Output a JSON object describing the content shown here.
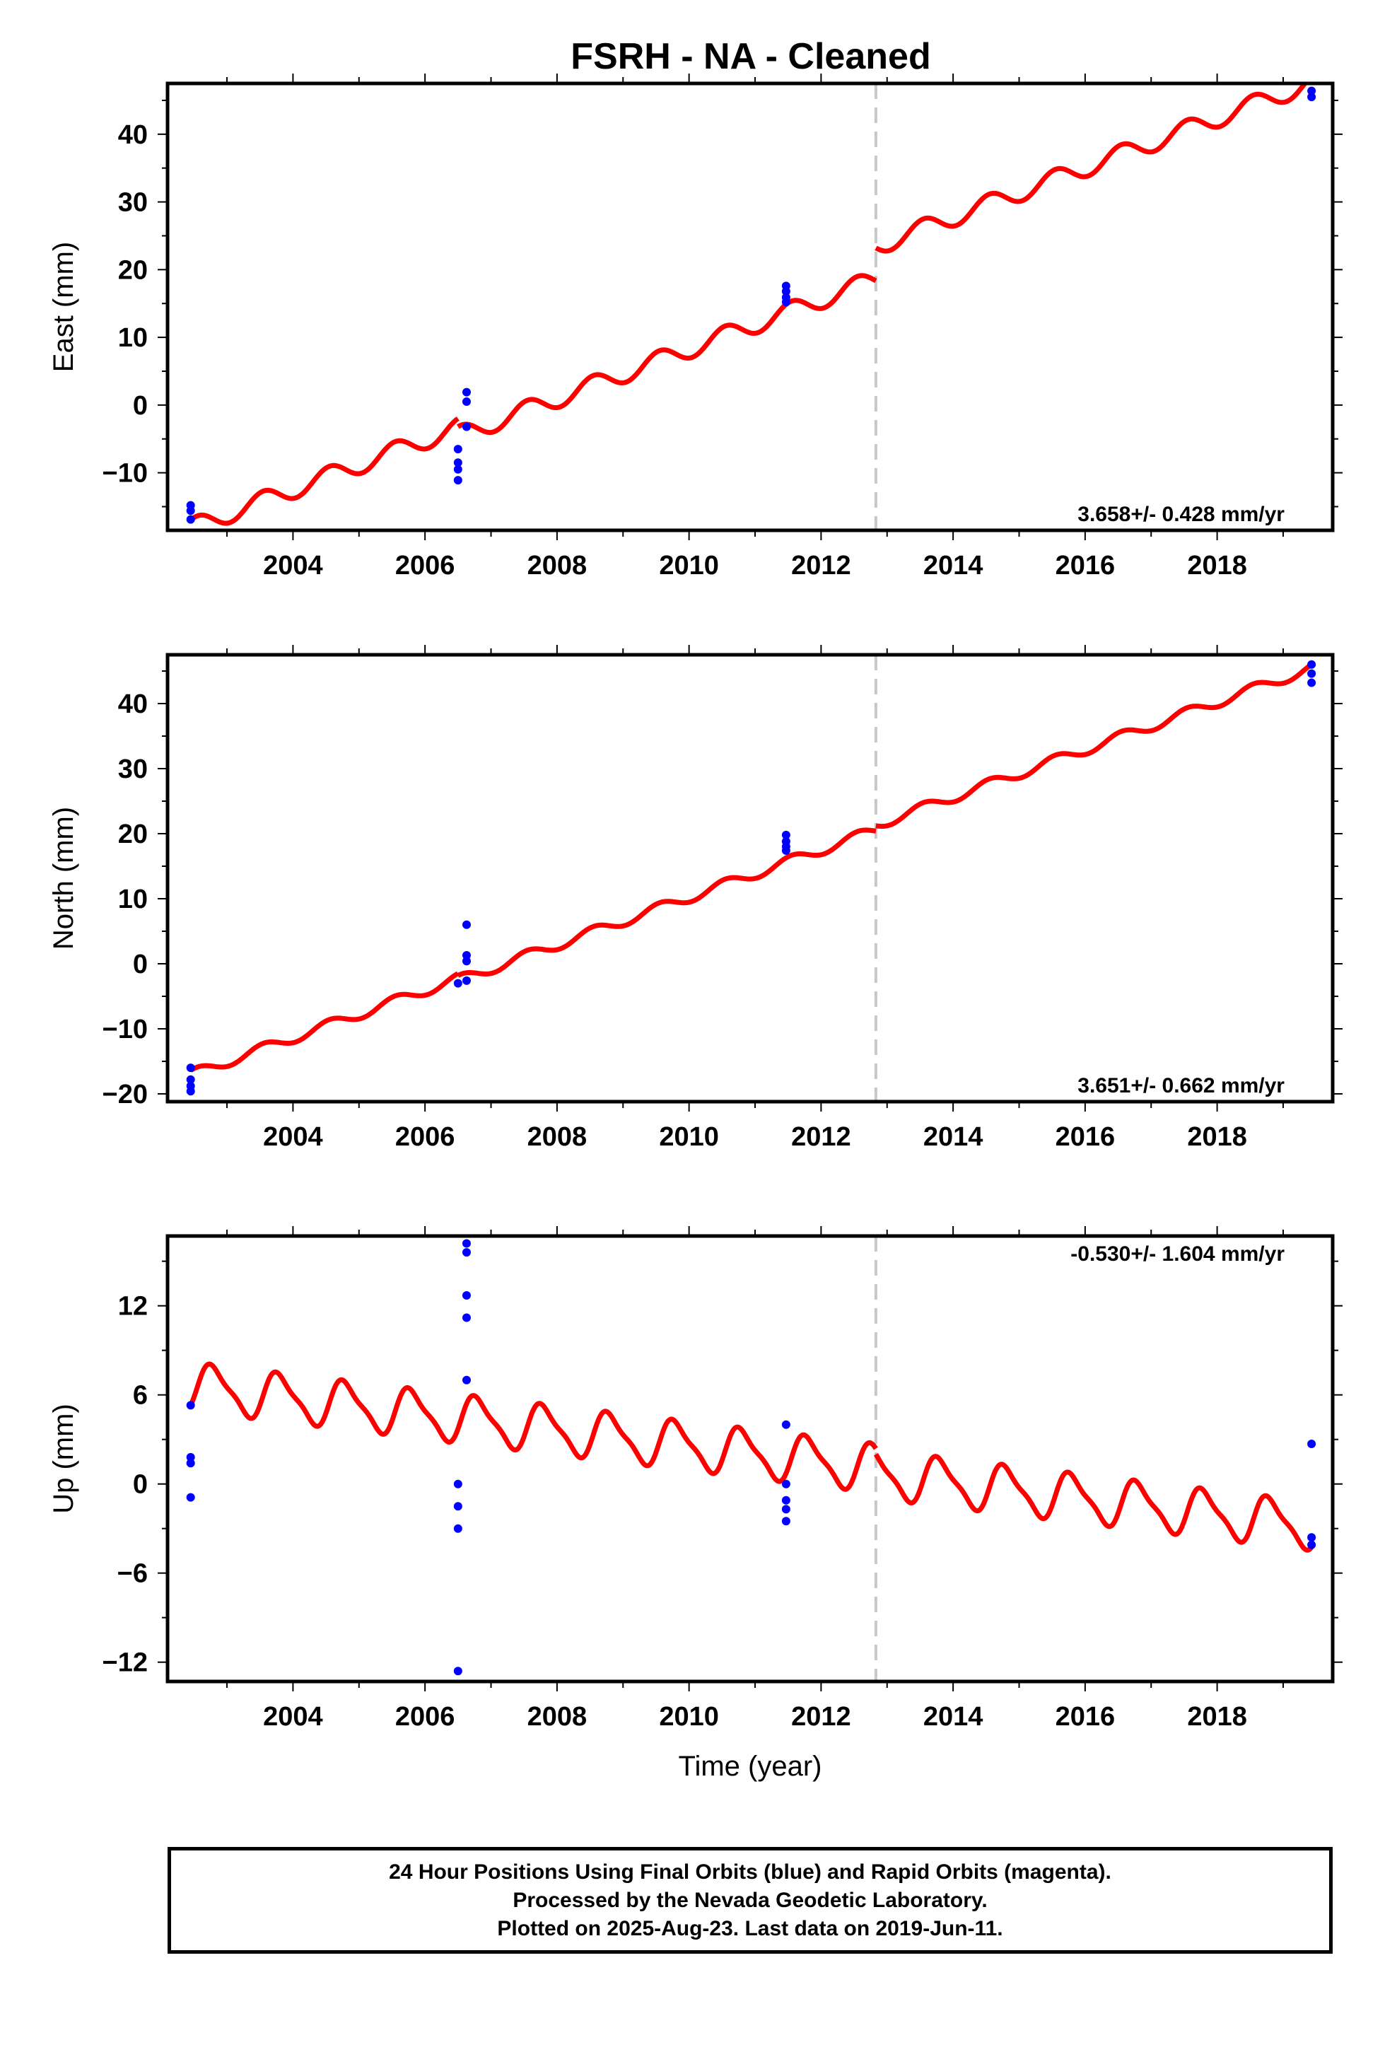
{
  "title": "FSRH  - NA - Cleaned",
  "colors": {
    "model": "#ff0000",
    "final_orbits": "#0000ff",
    "offset_line": "#c8c8c8",
    "frame": "#000000"
  },
  "footer": {
    "line1": "24 Hour Positions Using Final Orbits (blue) and Rapid Orbits (magenta).",
    "line2": "Processed by the Nevada Geodetic Laboratory.",
    "line3": "Plotted on 2025-Aug-23. Last data on 2019-Jun-11."
  },
  "chart_data": [
    {
      "type": "scatter",
      "component": "east",
      "ylabel": "East (mm)",
      "xlabel": "",
      "xlim": [
        2002.1,
        2019.75
      ],
      "ylim": [
        -18.5,
        47.5
      ],
      "x_ticks": [
        2004,
        2006,
        2008,
        2010,
        2012,
        2014,
        2016,
        2018
      ],
      "y_ticks": [
        -10,
        0,
        10,
        20,
        30,
        40
      ],
      "y_tick_labels": [
        "−10",
        "0",
        "10",
        "20",
        "30",
        "40"
      ],
      "rate_label": "3.658+/- 0.428 mm/yr",
      "rate_label_position": "bottom-right",
      "offset_epoch": 2012.83,
      "points": [
        {
          "x": 2002.45,
          "y": -14.8
        },
        {
          "x": 2002.45,
          "y": -15.6
        },
        {
          "x": 2002.45,
          "y": -16.9
        },
        {
          "x": 2006.5,
          "y": -6.5
        },
        {
          "x": 2006.5,
          "y": -8.5
        },
        {
          "x": 2006.5,
          "y": -9.5
        },
        {
          "x": 2006.5,
          "y": -11.1
        },
        {
          "x": 2006.63,
          "y": 1.9
        },
        {
          "x": 2006.63,
          "y": 0.5
        },
        {
          "x": 2006.63,
          "y": -3.2
        },
        {
          "x": 2011.47,
          "y": 17.6
        },
        {
          "x": 2011.47,
          "y": 16.8
        },
        {
          "x": 2011.47,
          "y": 15.9
        },
        {
          "x": 2011.47,
          "y": 15.2
        },
        {
          "x": 2019.43,
          "y": 45.5
        },
        {
          "x": 2019.43,
          "y": 46.4
        }
      ],
      "model": {
        "segments": [
          {
            "start": 2002.45,
            "end": 2006.5,
            "anchor_x": 2002.45,
            "anchor_y": -17.0
          },
          {
            "start": 2006.5,
            "end": 2012.83,
            "anchor_x": 2006.5,
            "anchor_y": -3.2
          },
          {
            "start": 2012.83,
            "end": 2019.43,
            "anchor_x": 2012.83,
            "anchor_y": 23.2
          }
        ],
        "rate": 3.658,
        "annual_amplitude": 1.4,
        "annual_phase": 0.3
      }
    },
    {
      "type": "scatter",
      "component": "north",
      "ylabel": "North (mm)",
      "xlabel": "",
      "xlim": [
        2002.1,
        2019.75
      ],
      "ylim": [
        -21.2,
        47.5
      ],
      "x_ticks": [
        2004,
        2006,
        2008,
        2010,
        2012,
        2014,
        2016,
        2018
      ],
      "y_ticks": [
        -20,
        -10,
        0,
        10,
        20,
        30,
        40
      ],
      "y_tick_labels": [
        "−20",
        "−10",
        "0",
        "10",
        "20",
        "30",
        "40"
      ],
      "rate_label": "3.651+/- 0.662 mm/yr",
      "rate_label_position": "bottom-right",
      "offset_epoch": 2012.83,
      "points": [
        {
          "x": 2002.45,
          "y": -16.0
        },
        {
          "x": 2002.45,
          "y": -17.8
        },
        {
          "x": 2002.45,
          "y": -18.8
        },
        {
          "x": 2002.45,
          "y": -19.6
        },
        {
          "x": 2006.5,
          "y": -3.0
        },
        {
          "x": 2006.63,
          "y": -2.6
        },
        {
          "x": 2006.63,
          "y": 6.0
        },
        {
          "x": 2006.63,
          "y": 1.3
        },
        {
          "x": 2006.63,
          "y": 0.4
        },
        {
          "x": 2011.47,
          "y": 19.8
        },
        {
          "x": 2011.47,
          "y": 18.8
        },
        {
          "x": 2011.47,
          "y": 18.0
        },
        {
          "x": 2011.47,
          "y": 17.4
        },
        {
          "x": 2019.43,
          "y": 46.0
        },
        {
          "x": 2019.43,
          "y": 44.6
        },
        {
          "x": 2019.43,
          "y": 43.2
        }
      ],
      "model": {
        "segments": [
          {
            "start": 2002.45,
            "end": 2006.5,
            "anchor_x": 2002.45,
            "anchor_y": -16.4
          },
          {
            "start": 2006.5,
            "end": 2012.83,
            "anchor_x": 2006.5,
            "anchor_y": -1.8
          },
          {
            "start": 2012.83,
            "end": 2019.43,
            "anchor_x": 2012.83,
            "anchor_y": 21.2
          }
        ],
        "rate": 3.651,
        "annual_amplitude": 0.8,
        "annual_phase": 0.3
      }
    },
    {
      "type": "scatter",
      "component": "up",
      "ylabel": "Up (mm)",
      "xlabel": "Time (year)",
      "xlim": [
        2002.1,
        2019.75
      ],
      "ylim": [
        -13.3,
        16.7
      ],
      "x_ticks": [
        2004,
        2006,
        2008,
        2010,
        2012,
        2014,
        2016,
        2018
      ],
      "y_ticks": [
        -12,
        -6,
        0,
        6,
        12
      ],
      "y_tick_labels": [
        "−12",
        "−6",
        "0",
        "6",
        "12"
      ],
      "rate_label": "-0.530+/- 1.604 mm/yr",
      "rate_label_position": "top-right",
      "offset_epoch": 2012.83,
      "points": [
        {
          "x": 2002.45,
          "y": 5.3
        },
        {
          "x": 2002.45,
          "y": 1.8
        },
        {
          "x": 2002.45,
          "y": 1.4
        },
        {
          "x": 2002.45,
          "y": -0.9
        },
        {
          "x": 2006.5,
          "y": 0.0
        },
        {
          "x": 2006.5,
          "y": -1.5
        },
        {
          "x": 2006.5,
          "y": -3.0
        },
        {
          "x": 2006.5,
          "y": -12.6
        },
        {
          "x": 2006.63,
          "y": 16.2
        },
        {
          "x": 2006.63,
          "y": 15.6
        },
        {
          "x": 2006.63,
          "y": 12.7
        },
        {
          "x": 2006.63,
          "y": 11.2
        },
        {
          "x": 2006.63,
          "y": 7.0
        },
        {
          "x": 2011.47,
          "y": 4.0
        },
        {
          "x": 2011.47,
          "y": 0.0
        },
        {
          "x": 2011.47,
          "y": -1.1
        },
        {
          "x": 2011.47,
          "y": -1.7
        },
        {
          "x": 2011.47,
          "y": -2.5
        },
        {
          "x": 2019.43,
          "y": 2.7
        },
        {
          "x": 2019.43,
          "y": -3.6
        },
        {
          "x": 2019.43,
          "y": -4.1
        }
      ],
      "model": {
        "segments": [
          {
            "start": 2002.45,
            "end": 2012.83,
            "anchor_x": 2002.45,
            "anchor_y": 5.3
          },
          {
            "start": 2012.83,
            "end": 2019.43,
            "anchor_x": 2012.83,
            "anchor_y": 2.0
          }
        ],
        "rate": -0.53,
        "annual_amplitude": 1.5,
        "annual_phase": 0.55,
        "semiannual_amplitude": 0.4
      }
    }
  ]
}
